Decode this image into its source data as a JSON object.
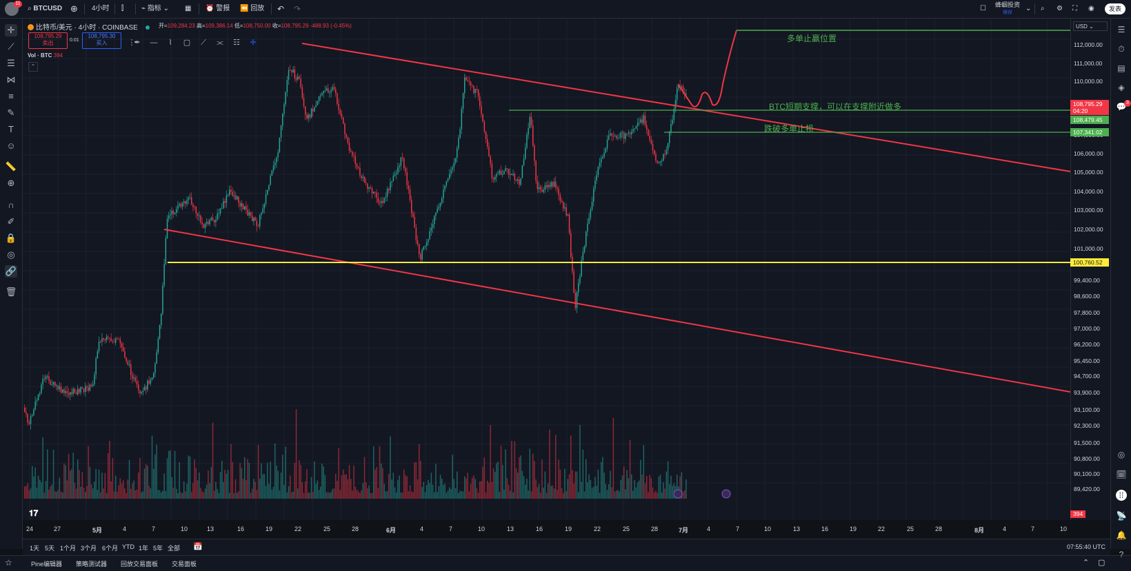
{
  "topbar": {
    "avatar_badge": "11",
    "symbol": "BTCUSD",
    "interval": "4小时",
    "indicators": "指标",
    "alert": "警报",
    "replay": "回放",
    "account_name": "蜂蝈投资",
    "account_sub": "保存",
    "share": "发表"
  },
  "legend": {
    "title": "比特币/美元 · 4小时 · COINBASE",
    "open_k": "开=",
    "open": "109,284.23",
    "high_k": "高=",
    "high": "109,386.14",
    "low_k": "低=",
    "low": "108,750.00",
    "close_k": "收=",
    "close": "108,795.29",
    "change": "-488.93 (-0.45%)",
    "sell_price": "108,795.29",
    "sell_label": "卖出",
    "spread": "0.01",
    "buy_price": "108,795.30",
    "buy_label": "买入",
    "vol_label": "Vol · BTC",
    "vol_value": "394"
  },
  "price_axis": {
    "currency": "USD",
    "labels": [
      "112,000.00",
      "111,000.00",
      "110,000.00",
      "108,000.00",
      "107,000.00",
      "106,000.00",
      "105,000.00",
      "104,000.00",
      "103,000.00",
      "102,000.00",
      "101,000.00",
      "100,200.00",
      "99,400.00",
      "98,600.00",
      "97,800.00",
      "97,000.00",
      "96,200.00",
      "95,450.00",
      "94,700.00",
      "93,900.00",
      "93,100.00",
      "92,300.00",
      "91,500.00",
      "90,800.00",
      "90,100.00",
      "89,420.00"
    ],
    "current_price": "108,795.29",
    "countdown": "04:20",
    "tag_support": "108,479.45",
    "tag_stop": "107,341.02",
    "tag_yellow": "100,760.52",
    "vol_tag": "394"
  },
  "annotations": {
    "take_profit": "多单止赢位置",
    "support": "BTC短期支撑，可以在支撑附近做多",
    "stop_loss": "跌破多单止损"
  },
  "time_axis": [
    "24",
    "27",
    "5月",
    "4",
    "7",
    "10",
    "13",
    "16",
    "19",
    "22",
    "25",
    "28",
    "6月",
    "4",
    "7",
    "10",
    "13",
    "16",
    "19",
    "22",
    "25",
    "28",
    "7月",
    "4",
    "7",
    "10",
    "13",
    "16",
    "19",
    "22",
    "25",
    "28",
    "8月",
    "4",
    "7",
    "10"
  ],
  "range_bar": [
    "1天",
    "5天",
    "1个月",
    "3个月",
    "6个月",
    "YTD",
    "1年",
    "5年",
    "全部"
  ],
  "utc_time": "07:55:40 UTC",
  "bottom_tabs": [
    "Pine编辑器",
    "策略测试器",
    "回放交易面板",
    "交易面板"
  ],
  "right_badges": {
    "notify": "3"
  },
  "colors": {
    "bg": "#131722",
    "up": "#26a69a",
    "down": "#f23645",
    "channel": "#f23645",
    "support": "#4caf50",
    "yellow": "#ffeb3b"
  }
}
